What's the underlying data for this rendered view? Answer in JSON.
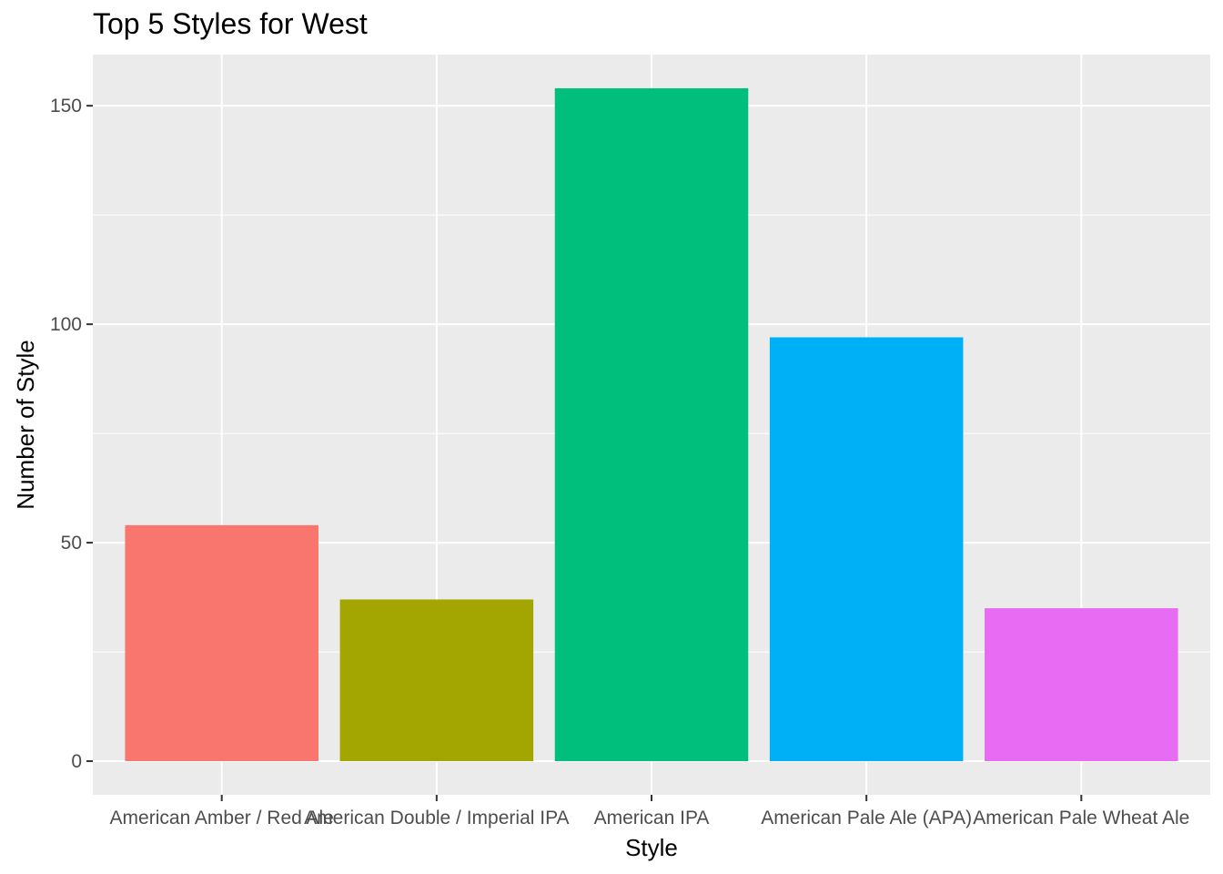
{
  "chart_data": {
    "type": "bar",
    "title": "Top 5 Styles for West",
    "xlabel": "Style",
    "ylabel": "Number of Style",
    "categories": [
      "American Amber / Red Ale",
      "American Double / Imperial IPA",
      "American IPA",
      "American Pale Ale (APA)",
      "American Pale Wheat Ale"
    ],
    "values": [
      54,
      37,
      154,
      97,
      35
    ],
    "colors": [
      "#F8766D",
      "#A3A500",
      "#00BF7D",
      "#00B0F6",
      "#E76BF3"
    ],
    "ylim": [
      -7.7,
      161.7
    ],
    "yticks": [
      0,
      50,
      100,
      150
    ],
    "ytick_labels": [
      "0",
      "50",
      "100",
      "150"
    ],
    "grid": true,
    "legend": "none",
    "panel_background": "#EBEBEB",
    "grid_color": "#FFFFFF"
  }
}
